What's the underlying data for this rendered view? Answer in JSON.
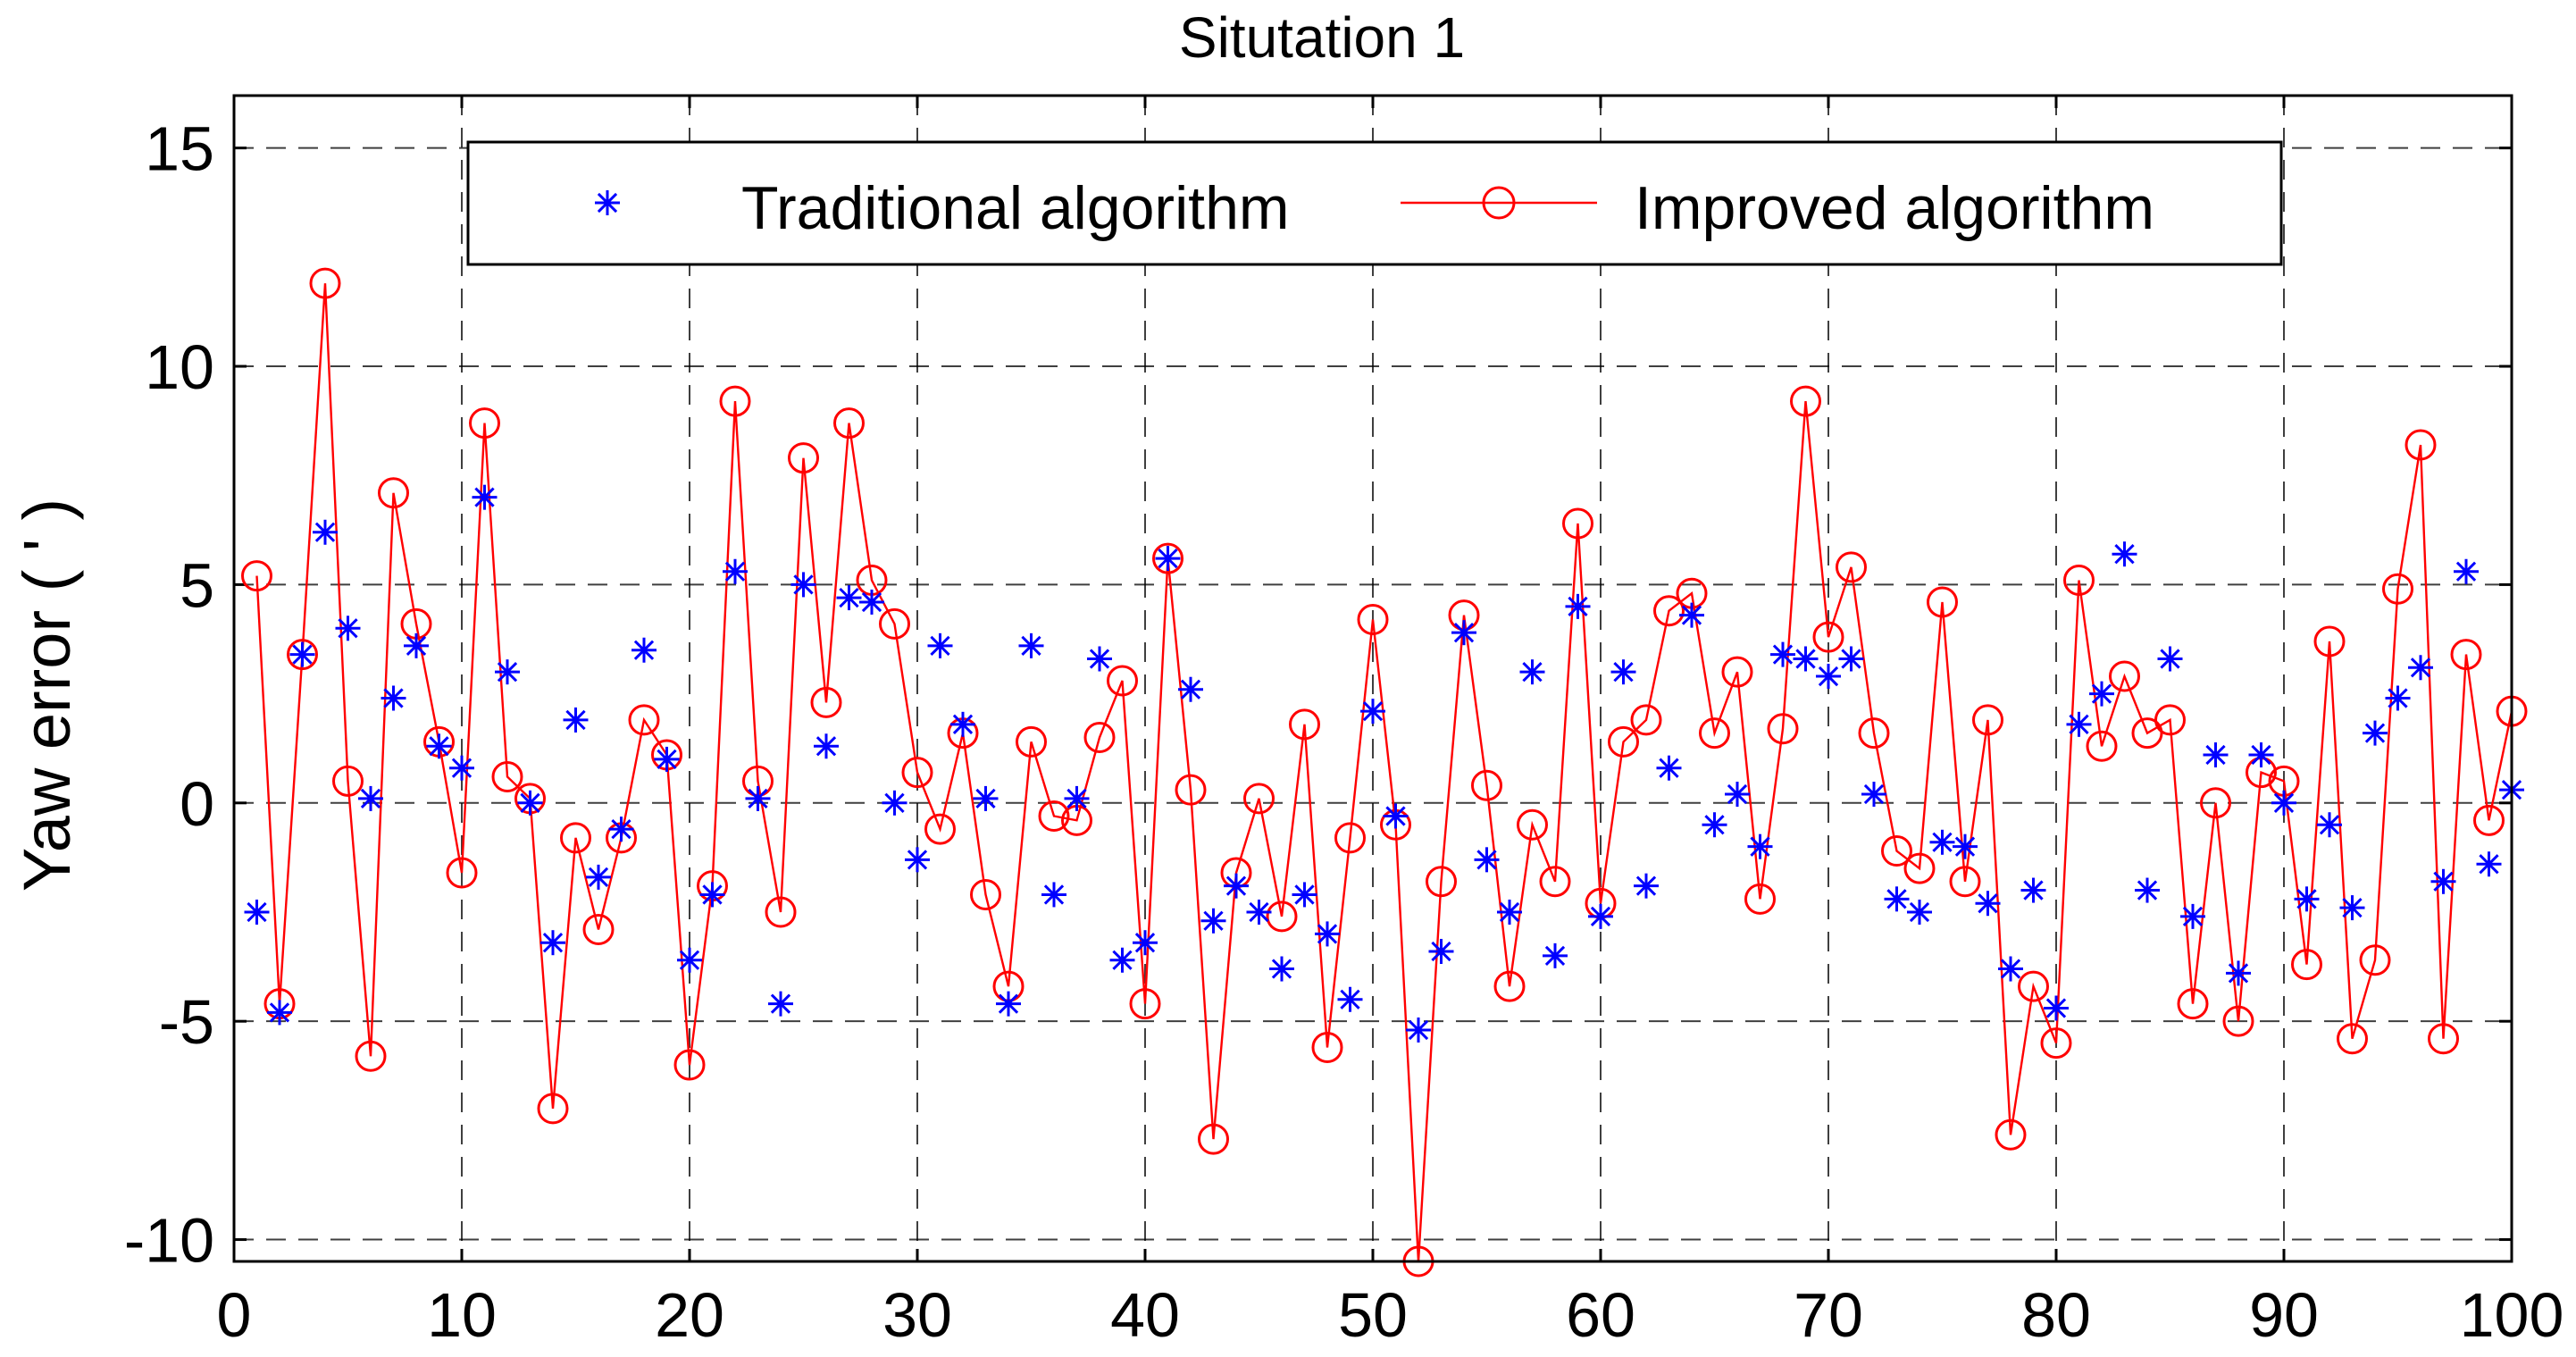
{
  "chart_data": {
    "type": "line",
    "title": "Situtation 1",
    "xlabel": "",
    "ylabel": "Yaw error ( ' )",
    "xlim": [
      0,
      100
    ],
    "ylim": [
      -10.5,
      16.2
    ],
    "xticks": [
      0,
      10,
      20,
      30,
      40,
      50,
      60,
      70,
      80,
      90,
      100
    ],
    "yticks": [
      -10,
      -5,
      0,
      5,
      10,
      15
    ],
    "xtick_labels": [
      "0",
      "10",
      "20",
      "30",
      "40",
      "50",
      "60",
      "70",
      "80",
      "90",
      "100"
    ],
    "ytick_labels": [
      "-10",
      "-5",
      "0",
      "5",
      "10",
      "15"
    ],
    "grid": true,
    "legend_position": "top",
    "legend": [
      "Traditional algorithm",
      "Improved algorithm"
    ],
    "series": [
      {
        "name": "Traditional algorithm",
        "style": "blue asterisk markers",
        "color": "#0000ff",
        "x": [
          1,
          2,
          3,
          4,
          5,
          6,
          7,
          8,
          9,
          10,
          11,
          12,
          13,
          14,
          15,
          16,
          17,
          18,
          19,
          20,
          21,
          22,
          23,
          24,
          25,
          26,
          27,
          28,
          29,
          30,
          31,
          32,
          33,
          34,
          35,
          36,
          37,
          38,
          39,
          40,
          41,
          42,
          43,
          44,
          45,
          46,
          47,
          48,
          49,
          50,
          51,
          52,
          53,
          54,
          55,
          56,
          57,
          58,
          59,
          60,
          61,
          62,
          63,
          64,
          65,
          66,
          67,
          68,
          69,
          70,
          71,
          72,
          73,
          74,
          75,
          76,
          77,
          78,
          79,
          80,
          81,
          82,
          83,
          84,
          85,
          86,
          87,
          88,
          89,
          90,
          91,
          92,
          93,
          94,
          95,
          96,
          97,
          98,
          99,
          100
        ],
        "y": [
          -2.5,
          -4.8,
          3.4,
          6.2,
          4.0,
          0.1,
          2.4,
          3.6,
          1.3,
          0.8,
          7.0,
          3.0,
          0.0,
          -3.2,
          1.9,
          -1.7,
          -0.6,
          3.5,
          1.0,
          -3.6,
          -2.1,
          5.3,
          0.1,
          -4.6,
          5.0,
          1.3,
          4.7,
          4.6,
          0.0,
          -1.3,
          3.6,
          1.8,
          0.1,
          -4.6,
          3.6,
          -2.1,
          0.1,
          3.3,
          -3.6,
          -3.2,
          5.6,
          2.6,
          -2.7,
          -1.9,
          -2.5,
          -3.8,
          -2.1,
          -3.0,
          -4.5,
          2.1,
          -0.3,
          -5.2,
          -3.4,
          3.9,
          -1.3,
          -2.5,
          3.0,
          -3.5,
          4.5,
          -2.6,
          3.0,
          -1.9,
          0.8,
          4.3,
          -0.5,
          0.2,
          -1.0,
          3.4,
          3.3,
          2.9,
          3.3,
          0.2,
          -2.2,
          -2.5,
          -0.9,
          -1.0,
          -2.3,
          -3.8,
          -2.0,
          -4.7,
          1.8,
          2.5,
          5.7,
          -2.0,
          3.3,
          -2.6,
          1.1,
          -3.9,
          1.1,
          0.0,
          -2.2,
          -0.5,
          -2.4,
          1.6,
          2.4,
          3.1,
          -1.8,
          5.3,
          -1.4,
          0.3
        ]
      },
      {
        "name": "Improved algorithm",
        "style": "red line with circle markers",
        "color": "#ff0000",
        "x": [
          1,
          2,
          3,
          4,
          5,
          6,
          7,
          8,
          9,
          10,
          11,
          12,
          13,
          14,
          15,
          16,
          17,
          18,
          19,
          20,
          21,
          22,
          23,
          24,
          25,
          26,
          27,
          28,
          29,
          30,
          31,
          32,
          33,
          34,
          35,
          36,
          37,
          38,
          39,
          40,
          41,
          42,
          43,
          44,
          45,
          46,
          47,
          48,
          49,
          50,
          51,
          52,
          53,
          54,
          55,
          56,
          57,
          58,
          59,
          60,
          61,
          62,
          63,
          64,
          65,
          66,
          67,
          68,
          69,
          70,
          71,
          72,
          73,
          74,
          75,
          76,
          77,
          78,
          79,
          80,
          81,
          82,
          83,
          84,
          85,
          86,
          87,
          88,
          89,
          90,
          91,
          92,
          93,
          94,
          95,
          96,
          97,
          98,
          99,
          100
        ],
        "y": [
          5.2,
          -4.6,
          3.4,
          11.9,
          0.5,
          -5.8,
          7.1,
          4.1,
          1.4,
          -1.6,
          8.7,
          0.6,
          0.1,
          -7.0,
          -0.8,
          -2.9,
          -0.8,
          1.9,
          1.1,
          -6.0,
          -1.9,
          9.2,
          0.5,
          -2.5,
          7.9,
          2.3,
          8.7,
          5.1,
          4.1,
          0.7,
          -0.6,
          1.6,
          -2.1,
          -4.2,
          1.4,
          -0.3,
          -0.4,
          1.5,
          2.8,
          -4.6,
          5.6,
          0.3,
          -7.7,
          -1.6,
          0.1,
          -2.6,
          1.8,
          -5.6,
          -0.8,
          4.2,
          -0.5,
          -10.5,
          -1.8,
          4.3,
          0.4,
          -4.2,
          -0.5,
          -1.8,
          6.4,
          -2.3,
          1.4,
          1.9,
          4.4,
          4.8,
          1.6,
          3.0,
          -2.2,
          1.7,
          9.2,
          3.8,
          5.4,
          1.6,
          -1.1,
          -1.5,
          4.6,
          -1.8,
          1.9,
          -7.6,
          -4.2,
          -5.5,
          5.1,
          1.3,
          2.9,
          1.6,
          1.9,
          -4.6,
          0.0,
          -5.0,
          0.7,
          0.5,
          -3.7,
          3.7,
          -5.4,
          -3.6,
          4.9,
          8.2,
          -5.4,
          3.4,
          -0.4,
          2.1
        ]
      }
    ]
  },
  "colors": {
    "traditional": "#0000ff",
    "improved": "#ff0000",
    "axes": "#000000",
    "background": "#ffffff"
  }
}
